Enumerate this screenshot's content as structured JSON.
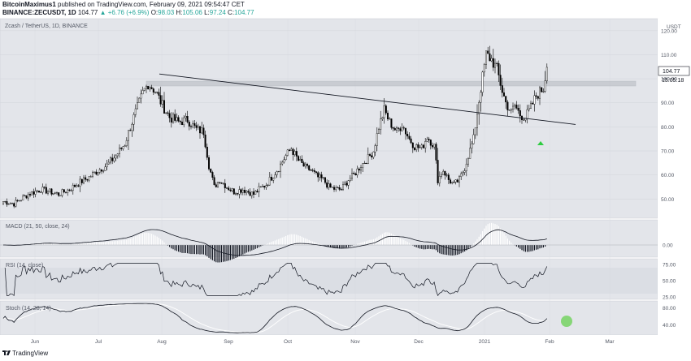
{
  "header": {
    "author": "BitcoinMaximus1",
    "published": " published on TradingView.com, February 09, 2021 09:54:47 CET",
    "symbol": "BINANCE:ZECUSDT, 1D",
    "close_price": "104.77",
    "change": "▲ +6.76 (+6.9%)",
    "o_label": "O:",
    "o_val": "98.03",
    "h_label": "H:",
    "h_val": "105.06",
    "l_label": "L:",
    "l_val": "97.24",
    "c_label": "C:",
    "c_val": "104.77"
  },
  "main": {
    "legend": "Zcash / TetherUS, 1D, BINANCE",
    "currency": "USDT",
    "price_badge": "104.77",
    "countdown": "15:05:18"
  },
  "indicators": {
    "macd_label": "MACD (21, 50, close, 24)",
    "rsi_label": "RSI (14, close)",
    "stoch_label": "Stoch (14, 28, 14)"
  },
  "footer": {
    "logo_text": "TradingView"
  },
  "colors": {
    "pane_bg": "#e3e5ea",
    "candle": "#000000",
    "resistance_zone": "#b9bcc3",
    "signal_green": "#4caf50",
    "highlight_green": "#7bd46a"
  },
  "chart_data": [
    {
      "type": "candlestick",
      "title": "Zcash / TetherUS, 1D, BINANCE",
      "ylabel": "USDT",
      "ylim": [
        42,
        125
      ],
      "y_ticks": [
        50,
        60,
        70,
        80,
        90,
        100,
        110,
        120
      ],
      "y_tick_labels": [
        "50.00",
        "60.00",
        "70.00",
        "80.00",
        "90.00",
        "100.00",
        "110.00",
        "120.00"
      ],
      "x_ticks": [
        "Jun",
        "Jul",
        "Aug",
        "Sep",
        "Oct",
        "Nov",
        "Dec",
        "2021",
        "Feb",
        "Mar"
      ],
      "anchor_closes": [
        [
          0,
          49
        ],
        [
          6,
          48
        ],
        [
          14,
          52
        ],
        [
          21,
          54
        ],
        [
          26,
          53
        ],
        [
          31,
          52
        ],
        [
          37,
          54
        ],
        [
          43,
          57
        ],
        [
          48,
          59
        ],
        [
          53,
          62
        ],
        [
          58,
          64
        ],
        [
          63,
          68
        ],
        [
          68,
          73
        ],
        [
          71,
          80
        ],
        [
          75,
          88
        ],
        [
          78,
          94
        ],
        [
          81,
          98
        ],
        [
          85,
          95
        ],
        [
          89,
          89
        ],
        [
          93,
          84
        ],
        [
          98,
          82
        ],
        [
          103,
          83
        ],
        [
          108,
          79
        ],
        [
          112,
          78
        ],
        [
          115,
          64
        ],
        [
          118,
          55
        ],
        [
          121,
          58
        ],
        [
          125,
          55
        ],
        [
          129,
          53
        ],
        [
          134,
          54
        ],
        [
          140,
          52
        ],
        [
          143,
          54
        ],
        [
          147,
          56
        ],
        [
          151,
          60
        ],
        [
          154,
          63
        ],
        [
          158,
          68
        ],
        [
          161,
          71
        ],
        [
          165,
          66
        ],
        [
          169,
          63
        ],
        [
          172,
          62
        ],
        [
          176,
          59
        ],
        [
          179,
          58
        ],
        [
          182,
          55
        ],
        [
          186,
          54
        ],
        [
          189,
          54
        ],
        [
          193,
          58
        ],
        [
          196,
          60
        ],
        [
          200,
          64
        ],
        [
          204,
          67
        ],
        [
          207,
          70
        ],
        [
          210,
          80
        ],
        [
          213,
          87
        ],
        [
          216,
          82
        ],
        [
          220,
          78
        ],
        [
          223,
          81
        ],
        [
          227,
          75
        ],
        [
          230,
          72
        ],
        [
          234,
          71
        ],
        [
          237,
          76
        ],
        [
          241,
          72
        ],
        [
          243,
          58
        ],
        [
          246,
          62
        ],
        [
          249,
          58
        ],
        [
          252,
          56
        ],
        [
          255,
          58
        ],
        [
          258,
          63
        ],
        [
          260,
          68
        ],
        [
          263,
          75
        ],
        [
          265,
          86
        ],
        [
          267,
          96
        ],
        [
          270,
          110
        ],
        [
          273,
          108
        ],
        [
          276,
          104
        ],
        [
          279,
          95
        ],
        [
          281,
          90
        ],
        [
          284,
          86
        ],
        [
          286,
          89
        ],
        [
          289,
          85
        ],
        [
          292,
          84
        ],
        [
          295,
          88
        ],
        [
          298,
          93
        ],
        [
          302,
          96
        ],
        [
          304,
          104.77
        ]
      ],
      "series": [
        {
          "name": "Resistance zone",
          "y_range": [
            97,
            99
          ]
        },
        {
          "name": "Descending trendline",
          "points": [
            [
              "Jul 28",
              102
            ],
            [
              "Feb 22",
              81
            ]
          ]
        }
      ],
      "annotations": [
        {
          "text": "green triangle marker under low near Jan 28"
        }
      ],
      "grid": true
    },
    {
      "type": "line",
      "title": "MACD (21, 50, close, 24)",
      "y_tick_labels": [
        "0.00"
      ],
      "series": [
        {
          "name": "MACD",
          "values_by_month_note": "rises to about +4 in Aug, dips to about -5 in Sep, hovers near 0 through Jan, peaks about +9 late Jan"
        },
        {
          "name": "Histogram",
          "values_by_month_note": "positive Jul-Aug, negative Sep, small positive Dec, positive late Jan"
        }
      ]
    },
    {
      "type": "line",
      "title": "RSI (14, close)",
      "ylim": [
        25,
        75
      ],
      "y_ticks": [
        25,
        50,
        75
      ],
      "y_tick_labels": [
        "25.00",
        "50.00",
        "75.00"
      ],
      "series": [
        {
          "name": "RSI",
          "values_note": "oscillates 45-70, peaks near 75 late Jan, ends near 60"
        }
      ]
    },
    {
      "type": "line",
      "title": "Stoch (14, 28, 14)",
      "ylim": [
        20,
        90
      ],
      "y_ticks": [
        40,
        80
      ],
      "y_tick_labels": [
        "40.00",
        "80.00"
      ],
      "series": [
        {
          "name": "%K",
          "values_note": "wave cycles: high Aug, low Sep, high Oct-Nov, low Dec, high Jan, turning up at end"
        },
        {
          "name": "%D"
        }
      ]
    }
  ]
}
